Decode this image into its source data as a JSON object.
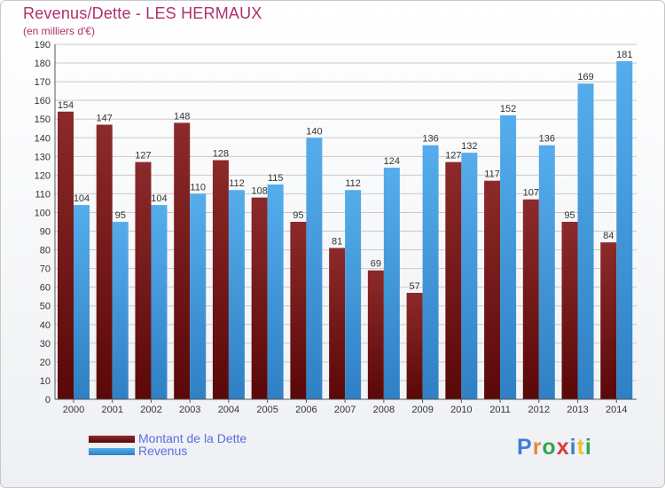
{
  "title": "Revenus/Dette - LES HERMAUX",
  "subtitle": "(en milliers d'€)",
  "logo": {
    "letters": [
      "P",
      "r",
      "o",
      "x",
      "i",
      "t",
      "i"
    ],
    "colors": [
      "#3a7fd5",
      "#e8873a",
      "#2fa84f",
      "#d93a3a",
      "#3a7fd5",
      "#e8c23a",
      "#2fa84f"
    ]
  },
  "chart_data": {
    "type": "bar",
    "categories": [
      "2000",
      "2001",
      "2002",
      "2003",
      "2004",
      "2005",
      "2006",
      "2007",
      "2008",
      "2009",
      "2010",
      "2011",
      "2012",
      "2013",
      "2014"
    ],
    "series": [
      {
        "name": "Montant de la Dette",
        "color": "#7a1a1a",
        "values": [
          154,
          147,
          127,
          148,
          128,
          108,
          95,
          81,
          69,
          57,
          127,
          117,
          107,
          95,
          84
        ]
      },
      {
        "name": "Revenus",
        "color": "#3a95d8",
        "values": [
          104,
          95,
          104,
          110,
          112,
          115,
          140,
          112,
          124,
          136,
          132,
          152,
          136,
          169,
          181
        ]
      }
    ],
    "ylim": [
      0,
      190
    ],
    "yticks": [
      0,
      10,
      20,
      30,
      40,
      50,
      60,
      70,
      80,
      90,
      100,
      110,
      120,
      130,
      140,
      150,
      160,
      170,
      180,
      190
    ],
    "grid": true,
    "legend": "bottom-left"
  }
}
